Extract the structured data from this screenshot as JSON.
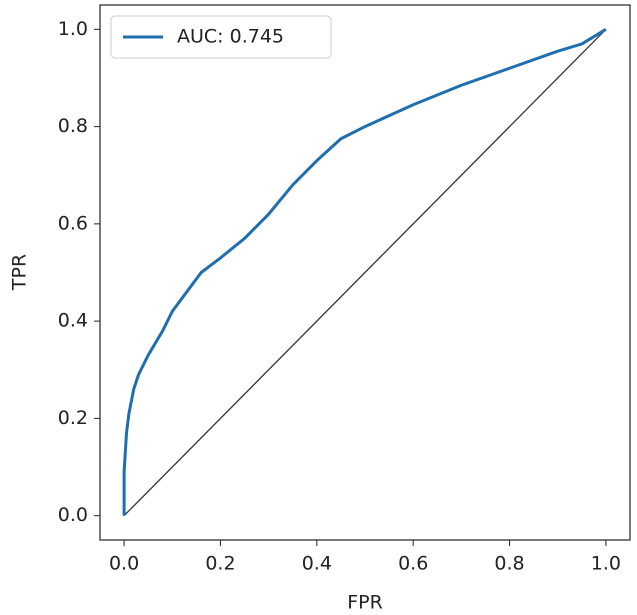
{
  "chart_data": {
    "type": "line",
    "x_label": "FPR",
    "y_label": "TPR",
    "xlim": [
      -0.05,
      1.05
    ],
    "ylim": [
      -0.05,
      1.05
    ],
    "xticks": [
      {
        "value": 0,
        "label": "0.0"
      },
      0.2,
      0.4,
      0.6,
      0.8,
      {
        "value": 1,
        "label": "1.0"
      }
    ],
    "yticks": [
      {
        "value": 0,
        "label": "0.0"
      },
      0.2,
      0.4,
      0.6,
      0.8,
      {
        "value": 1,
        "label": "1.0"
      }
    ],
    "legend": "upper-left",
    "series": [
      {
        "name": "AUC: 0.745",
        "color": "#1f6fb0",
        "x": [
          0,
          0,
          0.005,
          0.01,
          0.02,
          0.03,
          0.05,
          0.08,
          0.1,
          0.13,
          0.16,
          0.2,
          0.25,
          0.3,
          0.35,
          0.4,
          0.45,
          0.5,
          0.6,
          0.7,
          0.8,
          0.9,
          0.95,
          1
        ],
        "values": [
          0,
          0.09,
          0.17,
          0.21,
          0.26,
          0.29,
          0.33,
          0.38,
          0.42,
          0.46,
          0.5,
          0.53,
          0.57,
          0.62,
          0.68,
          0.73,
          0.775,
          0.8,
          0.845,
          0.885,
          0.92,
          0.955,
          0.97,
          1
        ]
      }
    ],
    "diagonal": {
      "color": "#333333",
      "x": [
        0,
        1
      ],
      "values": [
        0,
        1
      ]
    }
  }
}
